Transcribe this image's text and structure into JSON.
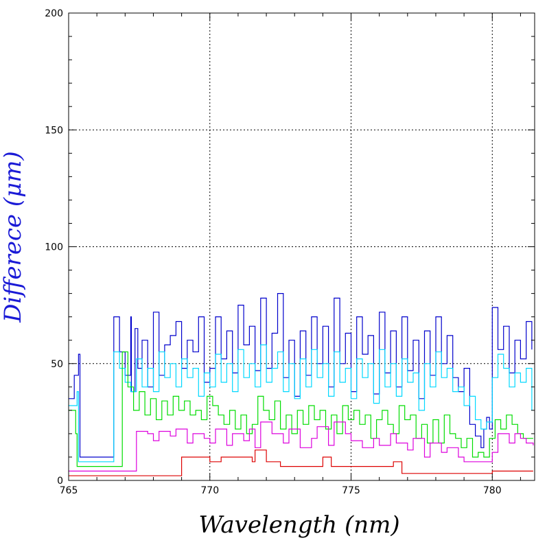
{
  "chart_data": {
    "type": "line",
    "title": "",
    "xlabel": "Wavelength (nm)",
    "ylabel": "Differece (μm)",
    "xlim": [
      765,
      781.5
    ],
    "ylim": [
      0,
      200
    ],
    "x_ticks": [
      "765",
      "770",
      "775",
      "780"
    ],
    "y_ticks": [
      "0",
      "50",
      "100",
      "150",
      "200"
    ],
    "grid": true,
    "grid_lines_x": [
      770,
      775,
      780
    ],
    "grid_lines_y": [
      50,
      100,
      150
    ],
    "colors": {
      "xlabel": "#000000",
      "ylabel": "#1a1ad6"
    },
    "series": [
      {
        "color": "#0000cc",
        "x": [
          765.0,
          765.2,
          765.35,
          765.4,
          765.5,
          766.2,
          766.5,
          766.6,
          766.8,
          767.0,
          767.2,
          767.22,
          767.35,
          767.45,
          767.6,
          767.8,
          768.0,
          768.2,
          768.4,
          768.6,
          768.8,
          769.0,
          769.2,
          769.4,
          769.6,
          769.8,
          770.0,
          770.2,
          770.4,
          770.6,
          770.8,
          771.0,
          771.2,
          771.4,
          771.6,
          771.8,
          772.0,
          772.2,
          772.4,
          772.6,
          772.8,
          773.0,
          773.2,
          773.4,
          773.6,
          773.8,
          774.0,
          774.2,
          774.4,
          774.6,
          774.8,
          775.0,
          775.2,
          775.4,
          775.6,
          775.8,
          776.0,
          776.2,
          776.4,
          776.6,
          776.8,
          777.0,
          777.2,
          777.4,
          777.6,
          777.8,
          778.0,
          778.2,
          778.4,
          778.6,
          778.8,
          779.0,
          779.2,
          779.4,
          779.6,
          779.7,
          779.8,
          779.9,
          780.0,
          780.2,
          780.4,
          780.6,
          780.8,
          781.0,
          781.2,
          781.4
        ],
        "y": [
          35,
          45,
          54,
          10,
          10,
          10,
          10,
          70,
          55,
          45,
          70,
          38,
          65,
          48,
          60,
          40,
          72,
          45,
          58,
          62,
          68,
          48,
          60,
          55,
          70,
          42,
          48,
          70,
          52,
          64,
          46,
          75,
          58,
          66,
          47,
          78,
          48,
          63,
          80,
          44,
          60,
          36,
          64,
          45,
          70,
          50,
          66,
          40,
          78,
          50,
          63,
          38,
          70,
          54,
          62,
          37,
          72,
          46,
          64,
          40,
          70,
          47,
          60,
          35,
          64,
          45,
          70,
          50,
          62,
          44,
          38,
          48,
          24,
          19,
          14,
          22,
          27,
          22,
          74,
          56,
          66,
          46,
          60,
          52,
          68,
          56
        ]
      },
      {
        "color": "#00d8ff",
        "x": [
          765.0,
          765.3,
          765.35,
          766.4,
          766.5,
          766.6,
          766.8,
          767.0,
          767.2,
          767.4,
          767.6,
          767.8,
          768.0,
          768.2,
          768.4,
          768.6,
          768.8,
          769.0,
          769.2,
          769.4,
          769.6,
          769.8,
          770.0,
          770.2,
          770.4,
          770.6,
          770.8,
          771.0,
          771.2,
          771.4,
          771.6,
          771.8,
          772.0,
          772.2,
          772.4,
          772.6,
          772.8,
          773.0,
          773.2,
          773.4,
          773.6,
          773.8,
          774.0,
          774.2,
          774.4,
          774.6,
          774.8,
          775.0,
          775.2,
          775.4,
          775.6,
          775.8,
          776.0,
          776.2,
          776.4,
          776.6,
          776.8,
          777.0,
          777.2,
          777.4,
          777.6,
          777.8,
          778.0,
          778.2,
          778.4,
          778.6,
          778.8,
          779.0,
          779.2,
          779.4,
          779.6,
          779.8,
          780.0,
          780.2,
          780.4,
          780.6,
          780.8,
          781.0,
          781.2,
          781.4
        ],
        "y": [
          32,
          38,
          8,
          8,
          8,
          55,
          48,
          42,
          38,
          52,
          40,
          48,
          38,
          55,
          44,
          50,
          40,
          52,
          44,
          48,
          36,
          46,
          40,
          54,
          42,
          50,
          38,
          56,
          44,
          50,
          40,
          58,
          42,
          48,
          55,
          38,
          50,
          35,
          52,
          40,
          56,
          44,
          50,
          36,
          55,
          42,
          48,
          35,
          52,
          44,
          50,
          33,
          56,
          40,
          50,
          36,
          52,
          42,
          46,
          30,
          50,
          40,
          55,
          44,
          48,
          38,
          40,
          32,
          36,
          26,
          22,
          25,
          44,
          54,
          48,
          40,
          46,
          42,
          48,
          30
        ]
      },
      {
        "color": "#00dd00",
        "x": [
          765.0,
          765.25,
          765.3,
          766.5,
          766.7,
          766.9,
          767.1,
          767.3,
          767.5,
          767.7,
          767.9,
          768.1,
          768.3,
          768.5,
          768.7,
          768.9,
          769.1,
          769.3,
          769.5,
          769.7,
          769.9,
          770.1,
          770.3,
          770.5,
          770.7,
          770.9,
          771.1,
          771.3,
          771.5,
          771.7,
          771.9,
          772.1,
          772.3,
          772.5,
          772.7,
          772.9,
          773.1,
          773.3,
          773.5,
          773.7,
          773.9,
          774.1,
          774.3,
          774.5,
          774.7,
          774.9,
          775.1,
          775.3,
          775.5,
          775.7,
          775.9,
          776.1,
          776.3,
          776.5,
          776.7,
          776.9,
          777.1,
          777.3,
          777.5,
          777.7,
          777.9,
          778.1,
          778.3,
          778.5,
          778.7,
          778.9,
          779.1,
          779.3,
          779.5,
          779.7,
          779.9,
          780.1,
          780.3,
          780.5,
          780.7,
          780.9,
          781.1,
          781.3,
          781.45
        ],
        "y": [
          30,
          20,
          6,
          6,
          6,
          55,
          40,
          30,
          38,
          28,
          35,
          26,
          34,
          28,
          36,
          30,
          34,
          28,
          30,
          26,
          36,
          32,
          28,
          24,
          30,
          22,
          28,
          20,
          24,
          36,
          30,
          26,
          34,
          22,
          28,
          20,
          30,
          24,
          32,
          26,
          30,
          22,
          28,
          20,
          32,
          26,
          30,
          24,
          28,
          18,
          26,
          30,
          24,
          20,
          32,
          26,
          28,
          18,
          24,
          16,
          26,
          16,
          28,
          20,
          18,
          14,
          18,
          10,
          12,
          10,
          18,
          26,
          22,
          28,
          24,
          20,
          18,
          18,
          18
        ]
      },
      {
        "color": "#dd00dd",
        "x": [
          765.0,
          767.3,
          767.4,
          767.8,
          768.0,
          768.2,
          768.6,
          768.8,
          769.2,
          769.4,
          769.8,
          770.0,
          770.2,
          770.6,
          770.8,
          771.2,
          771.4,
          771.6,
          771.8,
          772.2,
          772.6,
          772.8,
          773.2,
          773.6,
          773.8,
          774.2,
          774.4,
          774.8,
          775.0,
          775.4,
          775.8,
          776.0,
          776.4,
          776.6,
          777.0,
          777.2,
          777.6,
          777.8,
          778.2,
          778.4,
          778.8,
          779.0,
          779.4,
          779.8,
          780.0,
          780.2,
          780.6,
          780.8,
          781.0,
          781.2,
          781.45
        ],
        "y": [
          4,
          4,
          21,
          20,
          17,
          21,
          19,
          22,
          16,
          20,
          18,
          16,
          22,
          15,
          20,
          17,
          22,
          14,
          25,
          20,
          16,
          22,
          14,
          18,
          23,
          15,
          25,
          20,
          17,
          14,
          18,
          15,
          20,
          16,
          13,
          18,
          10,
          16,
          12,
          14,
          10,
          8,
          8,
          8,
          12,
          20,
          16,
          20,
          18,
          16,
          15
        ]
      },
      {
        "color": "#dd0000",
        "x": [
          765.0,
          766.0,
          767.0,
          768.0,
          768.9,
          769.0,
          769.5,
          770.0,
          770.3,
          770.4,
          771.5,
          771.6,
          771.9,
          772.0,
          772.5,
          773.0,
          773.9,
          774.0,
          774.2,
          774.3,
          775.0,
          775.5,
          776.0,
          776.5,
          776.7,
          776.8,
          778.0,
          779.0,
          780.0,
          781.0,
          781.45
        ],
        "y": [
          2,
          2,
          2,
          2,
          2,
          10,
          10,
          8,
          8,
          10,
          8,
          13,
          13,
          8,
          6,
          6,
          6,
          10,
          10,
          6,
          6,
          6,
          6,
          8,
          8,
          3,
          3,
          3,
          4,
          4,
          4
        ]
      }
    ]
  }
}
